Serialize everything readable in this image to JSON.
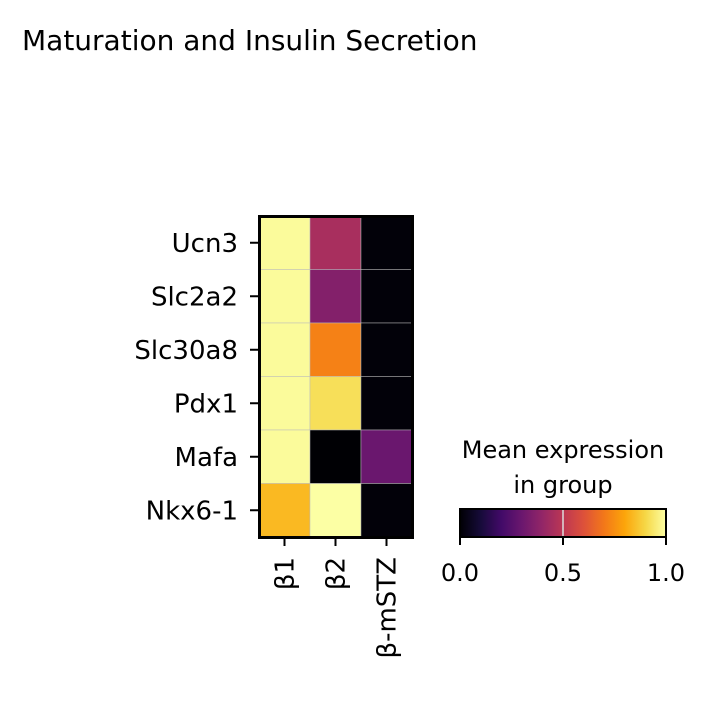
{
  "chart_data": {
    "type": "heatmap",
    "title": "Maturation and Insulin Secretion",
    "rows": [
      "Ucn3",
      "Slc2a2",
      "Slc30a8",
      "Pdx1",
      "Mafa",
      "Nkx6-1"
    ],
    "columns": [
      "β1",
      "β2",
      "β-mSTZ"
    ],
    "values": [
      [
        0.99,
        0.45,
        0.01
      ],
      [
        0.99,
        0.36,
        0.01
      ],
      [
        0.99,
        0.72,
        0.01
      ],
      [
        0.99,
        0.92,
        0.01
      ],
      [
        0.99,
        0.0,
        0.3
      ],
      [
        0.84,
        1.0,
        0.01
      ]
    ],
    "colormap": "inferno",
    "colorbar": {
      "title_lines": [
        "Mean expression",
        "in group"
      ],
      "ticks": [
        "0.0",
        "0.5",
        "1.0"
      ],
      "range": [
        0,
        1
      ]
    }
  }
}
